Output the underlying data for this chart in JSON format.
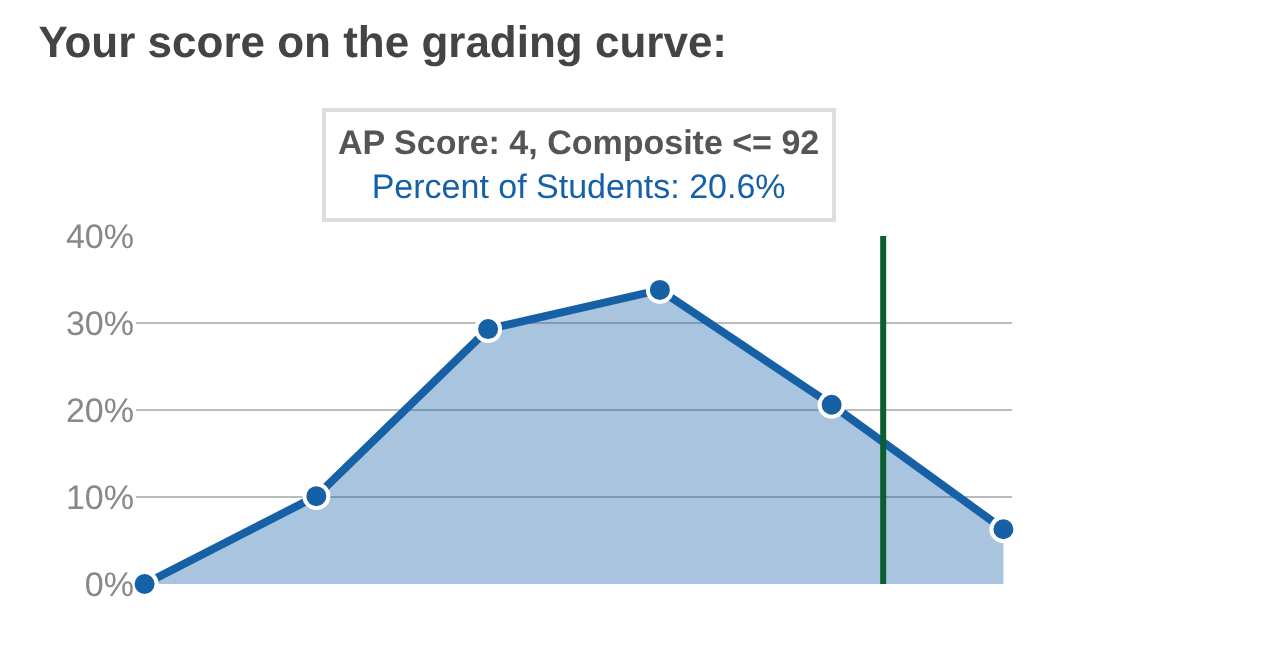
{
  "chart_data": {
    "type": "area",
    "title": "Your score on the grading curve:",
    "categories": [
      null,
      null,
      null,
      null,
      null,
      null
    ],
    "series": [
      {
        "color": "#1660a6",
        "values": [
          0,
          10.1,
          29.3,
          33.8,
          20.6,
          6.3
        ]
      }
    ],
    "ylim": [
      0,
      40
    ],
    "yticks": [
      {
        "value": 0,
        "label": "0%"
      },
      {
        "value": 10,
        "label": "10%"
      },
      {
        "value": 20,
        "label": "20%"
      },
      {
        "value": 30,
        "label": "30%"
      },
      {
        "value": 40,
        "label": "40%"
      }
    ],
    "tick_labels": "y",
    "grid": "y",
    "marker": "circle",
    "annotations": [
      "AP Score: 4, Composite <= 92\nPercent of Students: 20.6%"
    ]
  }
}
